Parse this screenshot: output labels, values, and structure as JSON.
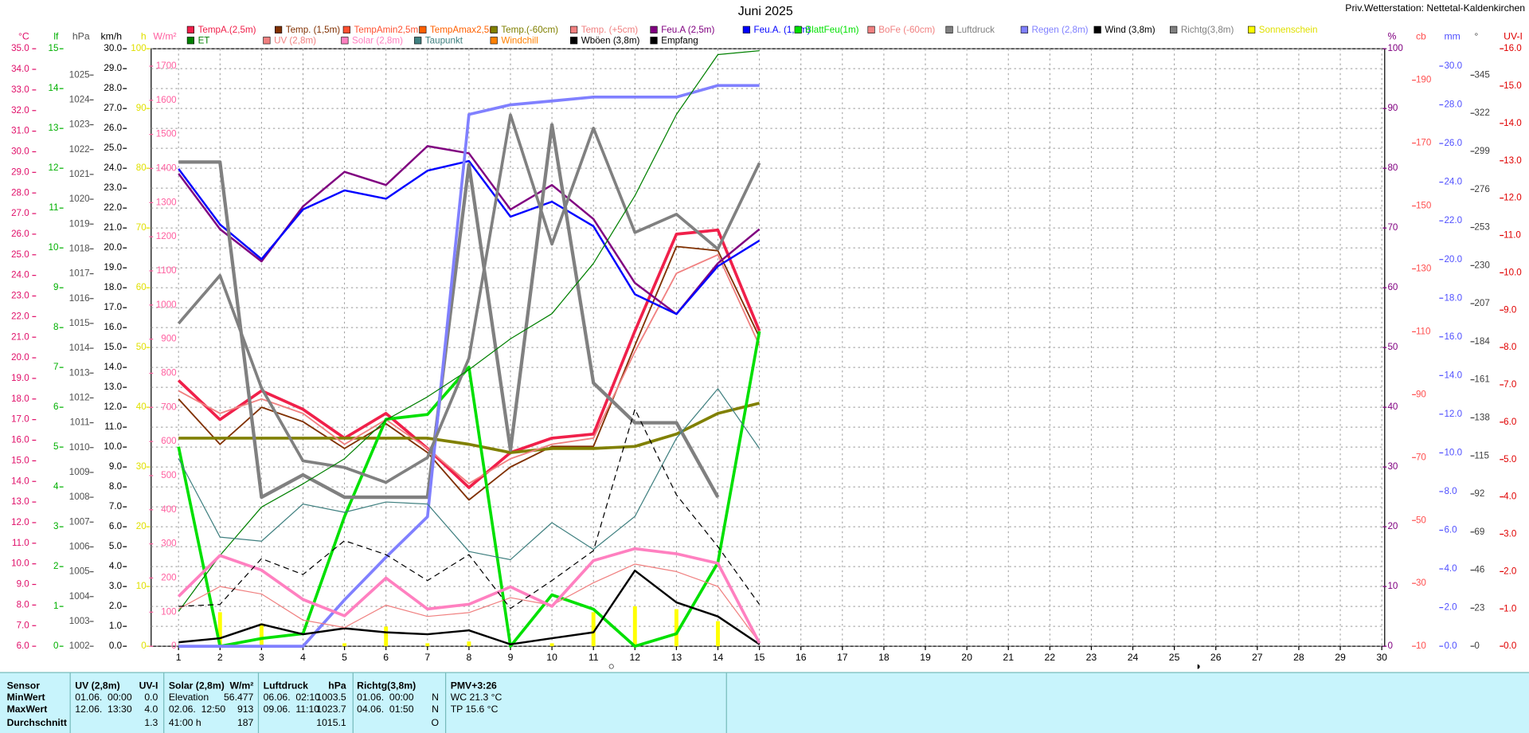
{
  "chart_data": {
    "type": "line",
    "title": "Juni 2025",
    "station": "Priv.Wetterstation: Nettetal-Kaldenkirchen",
    "x": [
      1,
      2,
      3,
      4,
      5,
      6,
      7,
      8,
      9,
      10,
      11,
      12,
      13,
      14,
      15
    ],
    "xlim": [
      0.34,
      30.07
    ],
    "xticks": [
      1,
      2,
      3,
      4,
      5,
      6,
      7,
      8,
      9,
      10,
      11,
      12,
      13,
      14,
      15,
      16,
      17,
      18,
      19,
      20,
      21,
      22,
      23,
      24,
      25,
      26,
      27,
      28,
      29,
      30
    ],
    "grid": true,
    "grid_axis": 3,
    "moon_phases": [
      "○",
      "◑"
    ],
    "y_axes": [
      {
        "label": "°C",
        "color": "#e0106a",
        "ylim": [
          6,
          35
        ],
        "yticks": [
          {
            "value": 6,
            "label": "6.0"
          },
          {
            "value": 7,
            "label": "7.0"
          },
          {
            "value": 8,
            "label": "8.0"
          },
          {
            "value": 9,
            "label": "9.0"
          },
          {
            "value": 10,
            "label": "10.0"
          },
          {
            "value": 11,
            "label": "11.0"
          },
          {
            "value": 12,
            "label": "12.0"
          },
          {
            "value": 13,
            "label": "13.0"
          },
          {
            "value": 14,
            "label": "14.0"
          },
          {
            "value": 15,
            "label": "15.0"
          },
          {
            "value": 16,
            "label": "16.0"
          },
          {
            "value": 17,
            "label": "17.0"
          },
          {
            "value": 18,
            "label": "18.0"
          },
          {
            "value": 19,
            "label": "19.0"
          },
          {
            "value": 20,
            "label": "20.0"
          },
          {
            "value": 21,
            "label": "21.0"
          },
          {
            "value": 22,
            "label": "22.0"
          },
          {
            "value": 23,
            "label": "23.0"
          },
          {
            "value": 24,
            "label": "24.0"
          },
          {
            "value": 25,
            "label": "25.0"
          },
          {
            "value": 26,
            "label": "26.0"
          },
          {
            "value": 27,
            "label": "27.0"
          },
          {
            "value": 28,
            "label": "28.0"
          },
          {
            "value": 29,
            "label": "29.0"
          },
          {
            "value": 30,
            "label": "30.0"
          },
          {
            "value": 31,
            "label": "31.0"
          },
          {
            "value": 32,
            "label": "32.0"
          },
          {
            "value": 33,
            "label": "33.0"
          },
          {
            "value": 34,
            "label": "34.0"
          },
          {
            "value": 35,
            "label": "35.0"
          }
        ]
      },
      {
        "label": "lf",
        "color": "#00b000",
        "ylim": [
          0,
          15
        ],
        "yticks": [
          0,
          1,
          2,
          3,
          4,
          5,
          6,
          7,
          8,
          9,
          10,
          11,
          12,
          13,
          14,
          15
        ]
      },
      {
        "label": "hPa",
        "color": "#505050",
        "ylim": [
          1002,
          1026.06
        ],
        "yticks": [
          1002,
          1003,
          1004,
          1005,
          1006,
          1007,
          1008,
          1009,
          1010,
          1011,
          1012,
          1013,
          1014,
          1015,
          1016,
          1017,
          1018,
          1019,
          1020,
          1021,
          1022,
          1023,
          1024,
          1025
        ]
      },
      {
        "label": "km/h",
        "color": "#000000",
        "ylim": [
          0,
          30
        ],
        "yticks": [
          {
            "value": 0,
            "label": "0.0"
          },
          {
            "value": 1,
            "label": "1.0"
          },
          {
            "value": 2,
            "label": "2.0"
          },
          {
            "value": 3,
            "label": "3.0"
          },
          {
            "value": 4,
            "label": "4.0"
          },
          {
            "value": 5,
            "label": "5.0"
          },
          {
            "value": 6,
            "label": "6.0"
          },
          {
            "value": 7,
            "label": "7.0"
          },
          {
            "value": 8,
            "label": "8.0"
          },
          {
            "value": 9,
            "label": "9.0"
          },
          {
            "value": 10,
            "label": "10.0"
          },
          {
            "value": 11,
            "label": "11.0"
          },
          {
            "value": 12,
            "label": "12.0"
          },
          {
            "value": 13,
            "label": "13.0"
          },
          {
            "value": 14,
            "label": "14.0"
          },
          {
            "value": 15,
            "label": "15.0"
          },
          {
            "value": 16,
            "label": "16.0"
          },
          {
            "value": 17,
            "label": "17.0"
          },
          {
            "value": 18,
            "label": "18.0"
          },
          {
            "value": 19,
            "label": "19.0"
          },
          {
            "value": 20,
            "label": "20.0"
          },
          {
            "value": 21,
            "label": "21.0"
          },
          {
            "value": 22,
            "label": "22.0"
          },
          {
            "value": 23,
            "label": "23.0"
          },
          {
            "value": 24,
            "label": "24.0"
          },
          {
            "value": 25,
            "label": "25.0"
          },
          {
            "value": 26,
            "label": "26.0"
          },
          {
            "value": 27,
            "label": "27.0"
          },
          {
            "value": 28,
            "label": "28.0"
          },
          {
            "value": 29,
            "label": "29.0"
          },
          {
            "value": 30,
            "label": "30.0"
          }
        ]
      },
      {
        "label": "h",
        "color": "#e0e000",
        "ylim": [
          0,
          100
        ],
        "yticks": [
          0,
          10,
          20,
          30,
          40,
          50,
          60,
          70,
          80,
          90,
          100
        ]
      },
      {
        "label": "W/m²",
        "color": "#ff60a0",
        "ylim": [
          0,
          1751
        ],
        "yticks": [
          0,
          100,
          200,
          300,
          400,
          500,
          600,
          700,
          800,
          900,
          1000,
          1100,
          1200,
          1300,
          1400,
          1500,
          1600,
          1700
        ]
      },
      {
        "label": "%",
        "color": "#800080",
        "ylim": [
          0,
          100
        ],
        "yticks": [
          0,
          10,
          20,
          30,
          40,
          50,
          60,
          70,
          80,
          90,
          100
        ]
      },
      {
        "label": "cb",
        "color": "#ff5050",
        "ylim": [
          10,
          200
        ],
        "yticks": [
          10,
          30,
          50,
          70,
          90,
          110,
          130,
          150,
          170,
          190
        ]
      },
      {
        "label": "mm",
        "color": "#5050ff",
        "ylim": [
          0,
          30.9
        ],
        "yticks": [
          {
            "value": 0,
            "label": "0.0"
          },
          {
            "value": 2,
            "label": "2.0"
          },
          {
            "value": 4,
            "label": "4.0"
          },
          {
            "value": 6,
            "label": "6.0"
          },
          {
            "value": 8,
            "label": "8.0"
          },
          {
            "value": 10,
            "label": "10.0"
          },
          {
            "value": 12,
            "label": "12.0"
          },
          {
            "value": 14,
            "label": "14.0"
          },
          {
            "value": 16,
            "label": "16.0"
          },
          {
            "value": 18,
            "label": "18.0"
          },
          {
            "value": 20,
            "label": "20.0"
          },
          {
            "value": 22,
            "label": "22.0"
          },
          {
            "value": 24,
            "label": "24.0"
          },
          {
            "value": 26,
            "label": "26.0"
          },
          {
            "value": 28,
            "label": "28.0"
          },
          {
            "value": 30,
            "label": "30.0"
          }
        ]
      },
      {
        "label": "°",
        "color": "#404040",
        "ylim": [
          0,
          361
        ],
        "yticks": [
          0,
          23,
          46,
          69,
          92,
          115,
          138,
          161,
          184,
          207,
          230,
          253,
          276,
          299,
          322,
          345
        ]
      },
      {
        "label": "UV-I",
        "color": "#e00000",
        "ylim": [
          0,
          16
        ],
        "yticks": [
          {
            "value": 0,
            "label": "0.0"
          },
          {
            "value": 1,
            "label": "1.0"
          },
          {
            "value": 2,
            "label": "2.0"
          },
          {
            "value": 3,
            "label": "3.0"
          },
          {
            "value": 4,
            "label": "4.0"
          },
          {
            "value": 5,
            "label": "5.0"
          },
          {
            "value": 6,
            "label": "6.0"
          },
          {
            "value": 7,
            "label": "7.0"
          },
          {
            "value": 8,
            "label": "8.0"
          },
          {
            "value": 9,
            "label": "9.0"
          },
          {
            "value": 10,
            "label": "10.0"
          },
          {
            "value": 11,
            "label": "11.0"
          },
          {
            "value": 12,
            "label": "12.0"
          },
          {
            "value": 13,
            "label": "13.0"
          },
          {
            "value": 14,
            "label": "14.0"
          },
          {
            "value": 15,
            "label": "15.0"
          },
          {
            "value": 16,
            "label": "16.0"
          }
        ]
      }
    ],
    "series": [
      {
        "name": "TempA.(2,5m)",
        "color": "#f0204a",
        "axis": 0,
        "width": 3,
        "values": [
          18.9,
          17.0,
          18.4,
          17.5,
          16.1,
          17.3,
          15.6,
          13.7,
          15.4,
          16.1,
          16.3,
          21.3,
          26.0,
          26.2,
          21.3
        ]
      },
      {
        "name": "Temp. (1,5m)",
        "color": "#803000",
        "axis": 0,
        "width": 1.5,
        "values": [
          18.0,
          15.8,
          17.6,
          16.9,
          15.6,
          16.8,
          15.4,
          13.1,
          14.7,
          15.7,
          15.7,
          20.6,
          25.4,
          25.2,
          21.0
        ]
      },
      {
        "name": "TempAmin2,5m",
        "color": "#ff5030"
      },
      {
        "name": "TempAmax2,5m",
        "color": "#ff6000"
      },
      {
        "name": "Temp.(-60cm)",
        "color": "#808000",
        "axis": 0,
        "width": 3,
        "values": [
          16.1,
          16.1,
          16.1,
          16.1,
          16.1,
          16.1,
          16.1,
          15.8,
          15.4,
          15.6,
          15.6,
          15.7,
          16.3,
          17.3,
          17.8
        ]
      },
      {
        "name": "Temp. (+5cm)",
        "color": "#f08080",
        "axis": 0,
        "width": 1.5,
        "values": [
          18.4,
          17.3,
          18.0,
          17.3,
          15.8,
          17.0,
          15.6,
          13.9,
          15.1,
          15.8,
          16.1,
          20.3,
          24.1,
          25.0,
          20.6
        ]
      },
      {
        "name": "Feu.A (2,5m)",
        "color": "#800080",
        "axis": 6,
        "width": 2,
        "values": [
          79.1,
          69.8,
          64.4,
          73.6,
          79.4,
          77.2,
          83.7,
          82.5,
          73.1,
          77.2,
          71.5,
          60.8,
          55.6,
          64.1,
          69.8
        ]
      },
      {
        "name": "Feu.A. (1,5m)",
        "color": "#0000ff",
        "axis": 6,
        "width": 2,
        "values": [
          79.9,
          70.6,
          64.8,
          73.1,
          76.3,
          74.9,
          79.6,
          81.2,
          71.9,
          74.4,
          70.3,
          58.9,
          55.6,
          63.6,
          67.9
        ]
      },
      {
        "name": "BlattFeu(1m)",
        "color": "#00e000",
        "axis": 6,
        "width": 3,
        "values": [
          33.4,
          0,
          1.3,
          2.1,
          21.7,
          38.0,
          38.8,
          46.7,
          0,
          8.6,
          6.2,
          0,
          2.1,
          14.0,
          52.7
        ]
      },
      {
        "name": "BoFe (-60cm)",
        "color": "#f08080"
      },
      {
        "name": "Luftdruck",
        "color": "#808080",
        "axis": 2,
        "width": 3.5,
        "values": [
          1021.5,
          1021.5,
          1008.0,
          1008.9,
          1008.0,
          1008.0,
          1008.0,
          1021.4,
          1009.9,
          1023.0,
          1012.6,
          1011.0,
          1011.0,
          1008.0,
          null
        ]
      },
      {
        "name": "Regen (2,8m)",
        "color": "#8080ff",
        "axis": 8,
        "width": 3,
        "values": [
          0,
          0,
          0,
          0,
          2.4,
          4.6,
          6.7,
          27.5,
          28.0,
          28.2,
          28.4,
          28.4,
          28.4,
          29.0,
          29.0
        ]
      },
      {
        "name": "Wind (3,8m)",
        "color": "#000000",
        "axis": 3,
        "width": 2,
        "values": [
          0.2,
          0.4,
          1.1,
          0.6,
          0.9,
          0.7,
          0.6,
          0.8,
          0.1,
          0.4,
          0.7,
          3.8,
          2.2,
          1.5,
          0.1
        ]
      },
      {
        "name": "Richtg(3,8m)",
        "color": "#808080",
        "axis": 9,
        "width": 3,
        "values": [
          195,
          224,
          156,
          112,
          108,
          99,
          114,
          174,
          321,
          243,
          313,
          250,
          261,
          240,
          292
        ]
      },
      {
        "name": "Sonnenschein",
        "color": "#ffff00",
        "axis": 4,
        "style": "bar",
        "values": [
          0,
          5.7,
          3.8,
          0,
          0.5,
          3.3,
          0.5,
          0.8,
          0,
          0.5,
          5.7,
          6.7,
          6.2,
          4.2,
          0
        ]
      },
      {
        "name": "ET",
        "color": "#008000",
        "axis": 8,
        "width": 1,
        "values": [
          1.8,
          4.7,
          7.2,
          8.4,
          9.7,
          11.7,
          12.9,
          14.3,
          15.9,
          17.2,
          19.8,
          23.3,
          27.5,
          30.6,
          30.8
        ]
      },
      {
        "name": "UV (2,8m)",
        "color": "#f08080",
        "axis": 10,
        "width": 1,
        "values": [
          1.0,
          1.6,
          1.4,
          0.7,
          0.5,
          1.1,
          0.8,
          0.9,
          1.3,
          1.1,
          1.7,
          2.2,
          2.0,
          1.6,
          0.1
        ]
      },
      {
        "name": "Solar (2,8m)",
        "color": "#ff80c0",
        "axis": 5,
        "width": 3,
        "values": [
          146,
          266,
          223,
          137,
          89,
          200,
          109,
          123,
          174,
          117,
          251,
          286,
          271,
          243,
          9
        ]
      },
      {
        "name": "Taupunkt",
        "color": "#408080",
        "axis": 0,
        "width": 1,
        "values": [
          15.1,
          11.3,
          11.1,
          12.9,
          12.5,
          13.0,
          12.9,
          10.6,
          10.2,
          12.0,
          10.7,
          12.3,
          16.1,
          18.5,
          15.6
        ]
      },
      {
        "name": "Windchill",
        "color": "#ff8000"
      },
      {
        "name": "Wböen (3,8m)",
        "color": "#000000",
        "axis": 3,
        "width": 1,
        "dash": "6 4",
        "values": [
          2.0,
          2.1,
          4.4,
          3.6,
          5.3,
          4.6,
          3.3,
          4.6,
          1.9,
          3.3,
          4.8,
          11.9,
          7.6,
          5.0,
          2.1
        ]
      },
      {
        "name": "Empfang",
        "color": "#000000"
      }
    ]
  },
  "table": {
    "header": [
      "Sensor",
      "UV (2,8m)",
      "UV-I",
      "Solar (2,8m)",
      "W/m²",
      "Luftdruck",
      "hPa",
      "Richtg(3,8m)",
      null,
      "PMV+3:26"
    ],
    "rows": [
      [
        "MinWert",
        "01.06.  00:00",
        "0.0",
        "Elevation",
        "56.477",
        "06.06.  02:10",
        "1003.5",
        "01.06.  00:00",
        "N",
        "WC 21.3 °C"
      ],
      [
        "MaxWert",
        "12.06.  13:30",
        "4.0",
        "02.06.  12:50",
        "913",
        "09.06.  11:10",
        "1023.7",
        "04.06.  01:50",
        "N",
        "TP 15.6 °C"
      ],
      [
        "Durchschnitt",
        null,
        "1.3",
        "41:00 h",
        "187",
        null,
        "1015.1",
        null,
        "O",
        null
      ]
    ]
  }
}
